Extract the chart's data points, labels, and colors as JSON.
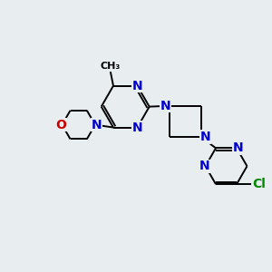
{
  "bg_color": "#e8edf0",
  "bond_color": "#000000",
  "n_color": "#0000cc",
  "o_color": "#cc0000",
  "cl_color": "#008800",
  "line_width": 1.4,
  "font_size": 10,
  "fig_size": [
    3.0,
    3.0
  ],
  "dpi": 100,
  "xlim": [
    0,
    10
  ],
  "ylim": [
    0,
    10
  ]
}
